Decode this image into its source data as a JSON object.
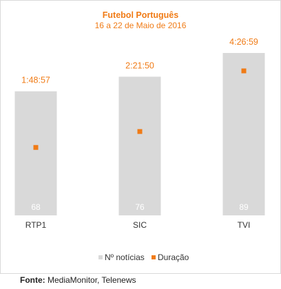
{
  "colors": {
    "bar": "#d9d9d9",
    "marker": "#f07b16",
    "title": "#f07b16",
    "bar_label": "#ffffff",
    "axis_text": "#333333"
  },
  "source": {
    "label": "Fonte:",
    "text": "MediaMonitor, Telenews"
  },
  "chart_data": {
    "type": "bar",
    "title": "Futebol Português",
    "subtitle": "16 a 22 de Maio de 2016",
    "categories": [
      "RTP1",
      "SIC",
      "TVI"
    ],
    "series": [
      {
        "name": "Nº notícias",
        "type": "bar",
        "values": [
          68,
          76,
          89
        ],
        "labels": [
          "68",
          "76",
          "89"
        ]
      },
      {
        "name": "Duração",
        "type": "marker",
        "values": [
          "1:48:57",
          "2:21:50",
          "4:26:59"
        ],
        "labels": [
          "1:48:57",
          "2:21:50",
          "4:26:59"
        ]
      }
    ],
    "legend": "bottom-center",
    "grid": false
  }
}
